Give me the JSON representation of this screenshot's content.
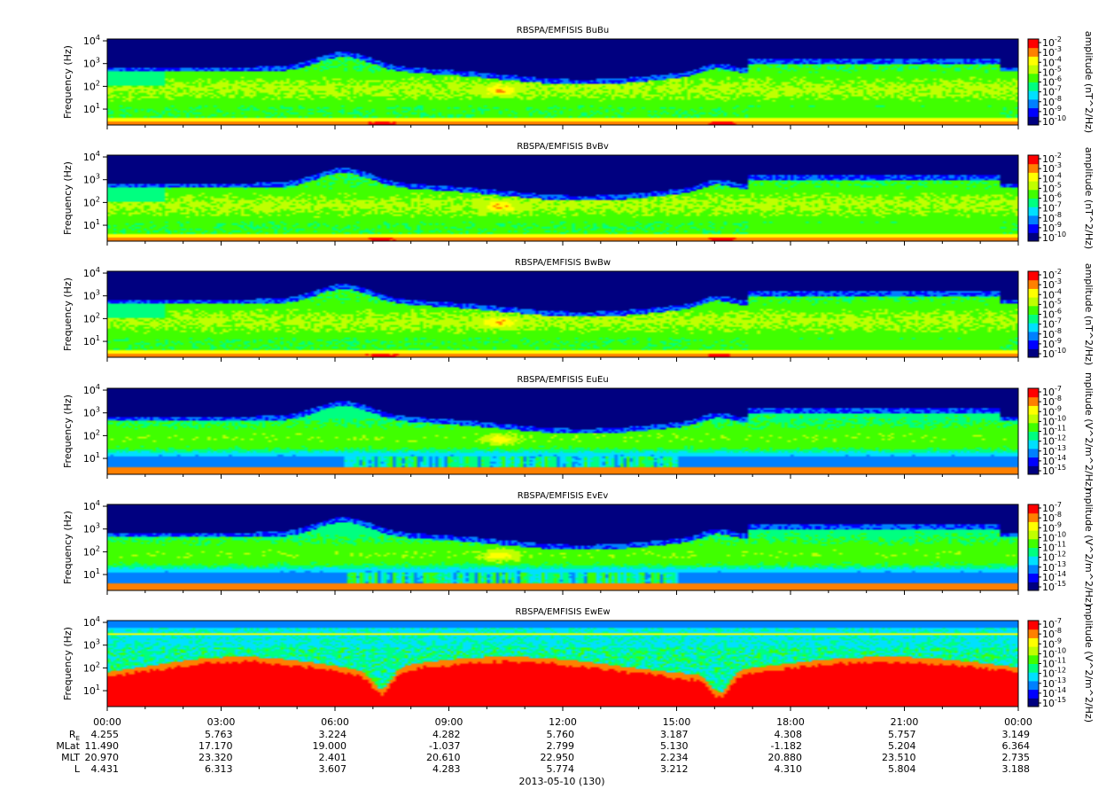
{
  "chart_data": {
    "type": "heatmap",
    "date_label": "2013-05-10 (130)",
    "x_tick_labels": [
      "00:00",
      "03:00",
      "06:00",
      "09:00",
      "12:00",
      "15:00",
      "18:00",
      "21:00",
      "00:00"
    ],
    "x_hours": [
      0,
      3,
      6,
      9,
      12,
      15,
      18,
      21,
      24
    ],
    "ylabel": "Frequency (Hz)",
    "y_scale": "log",
    "ylim_hz": [
      2,
      12000
    ],
    "y_tick_values": [
      10,
      100,
      1000,
      10000
    ],
    "panels": [
      {
        "title": "RBSPA/EMFISIS  BuBu",
        "kind": "B",
        "cbar_label": "amplitude (nT^2/Hz)",
        "cbar_exponents": [
          "-2",
          "-3",
          "-4",
          "-5",
          "-6",
          "-7",
          "-8",
          "-9",
          "-10"
        ]
      },
      {
        "title": "RBSPA/EMFISIS  BvBv",
        "kind": "B",
        "cbar_label": "amplitude (nT^2/Hz)",
        "cbar_exponents": [
          "-2",
          "-3",
          "-4",
          "-5",
          "-6",
          "-7",
          "-8",
          "-9",
          "-10"
        ]
      },
      {
        "title": "RBSPA/EMFISIS  BwBw",
        "kind": "B",
        "cbar_label": "amplitude (nT^2/Hz)",
        "cbar_exponents": [
          "-2",
          "-3",
          "-4",
          "-5",
          "-6",
          "-7",
          "-8",
          "-9",
          "-10"
        ]
      },
      {
        "title": "RBSPA/EMFISIS  EuEu",
        "kind": "E",
        "cbar_label": "mplitude (V^2/m^2/Hz)",
        "cbar_exponents": [
          "-7",
          "-8",
          "-9",
          "-10",
          "-11",
          "-12",
          "-13",
          "-14",
          "-15"
        ]
      },
      {
        "title": "RBSPA/EMFISIS  EvEv",
        "kind": "E",
        "cbar_label": "mplitude (V^2/m^2/Hz)",
        "cbar_exponents": [
          "-7",
          "-8",
          "-9",
          "-10",
          "-11",
          "-12",
          "-13",
          "-14",
          "-15"
        ]
      },
      {
        "title": "RBSPA/EMFISIS  EwEw",
        "kind": "Ew",
        "cbar_label": "mplitude (V^2/m^2/Hz)",
        "cbar_exponents": [
          "-7",
          "-8",
          "-9",
          "-10",
          "-11",
          "-12",
          "-13",
          "-14",
          "-15"
        ]
      }
    ],
    "ephemeris": {
      "labels": [
        "R",
        "MLat",
        "MLT",
        "L"
      ],
      "re_subscript": "E",
      "rows": [
        [
          "4.255",
          "5.763",
          "3.224",
          "4.282",
          "5.760",
          "3.187",
          "4.308",
          "5.757",
          "3.149"
        ],
        [
          "11.490",
          "17.170",
          "19.000",
          "-1.037",
          "2.799",
          "5.130",
          "-1.182",
          "5.204",
          "6.364"
        ],
        [
          "20.970",
          "23.320",
          "2.401",
          "20.610",
          "22.950",
          "2.234",
          "20.880",
          "23.510",
          "2.735"
        ],
        [
          "4.431",
          "6.313",
          "3.607",
          "4.283",
          "5.774",
          "3.212",
          "4.310",
          "5.804",
          "3.188"
        ]
      ]
    },
    "colormap": [
      "#000080",
      "#0000ff",
      "#0080ff",
      "#00e0ff",
      "#00ff80",
      "#40ff00",
      "#c0ff00",
      "#ffff00",
      "#ff8000",
      "#ff0000"
    ]
  }
}
